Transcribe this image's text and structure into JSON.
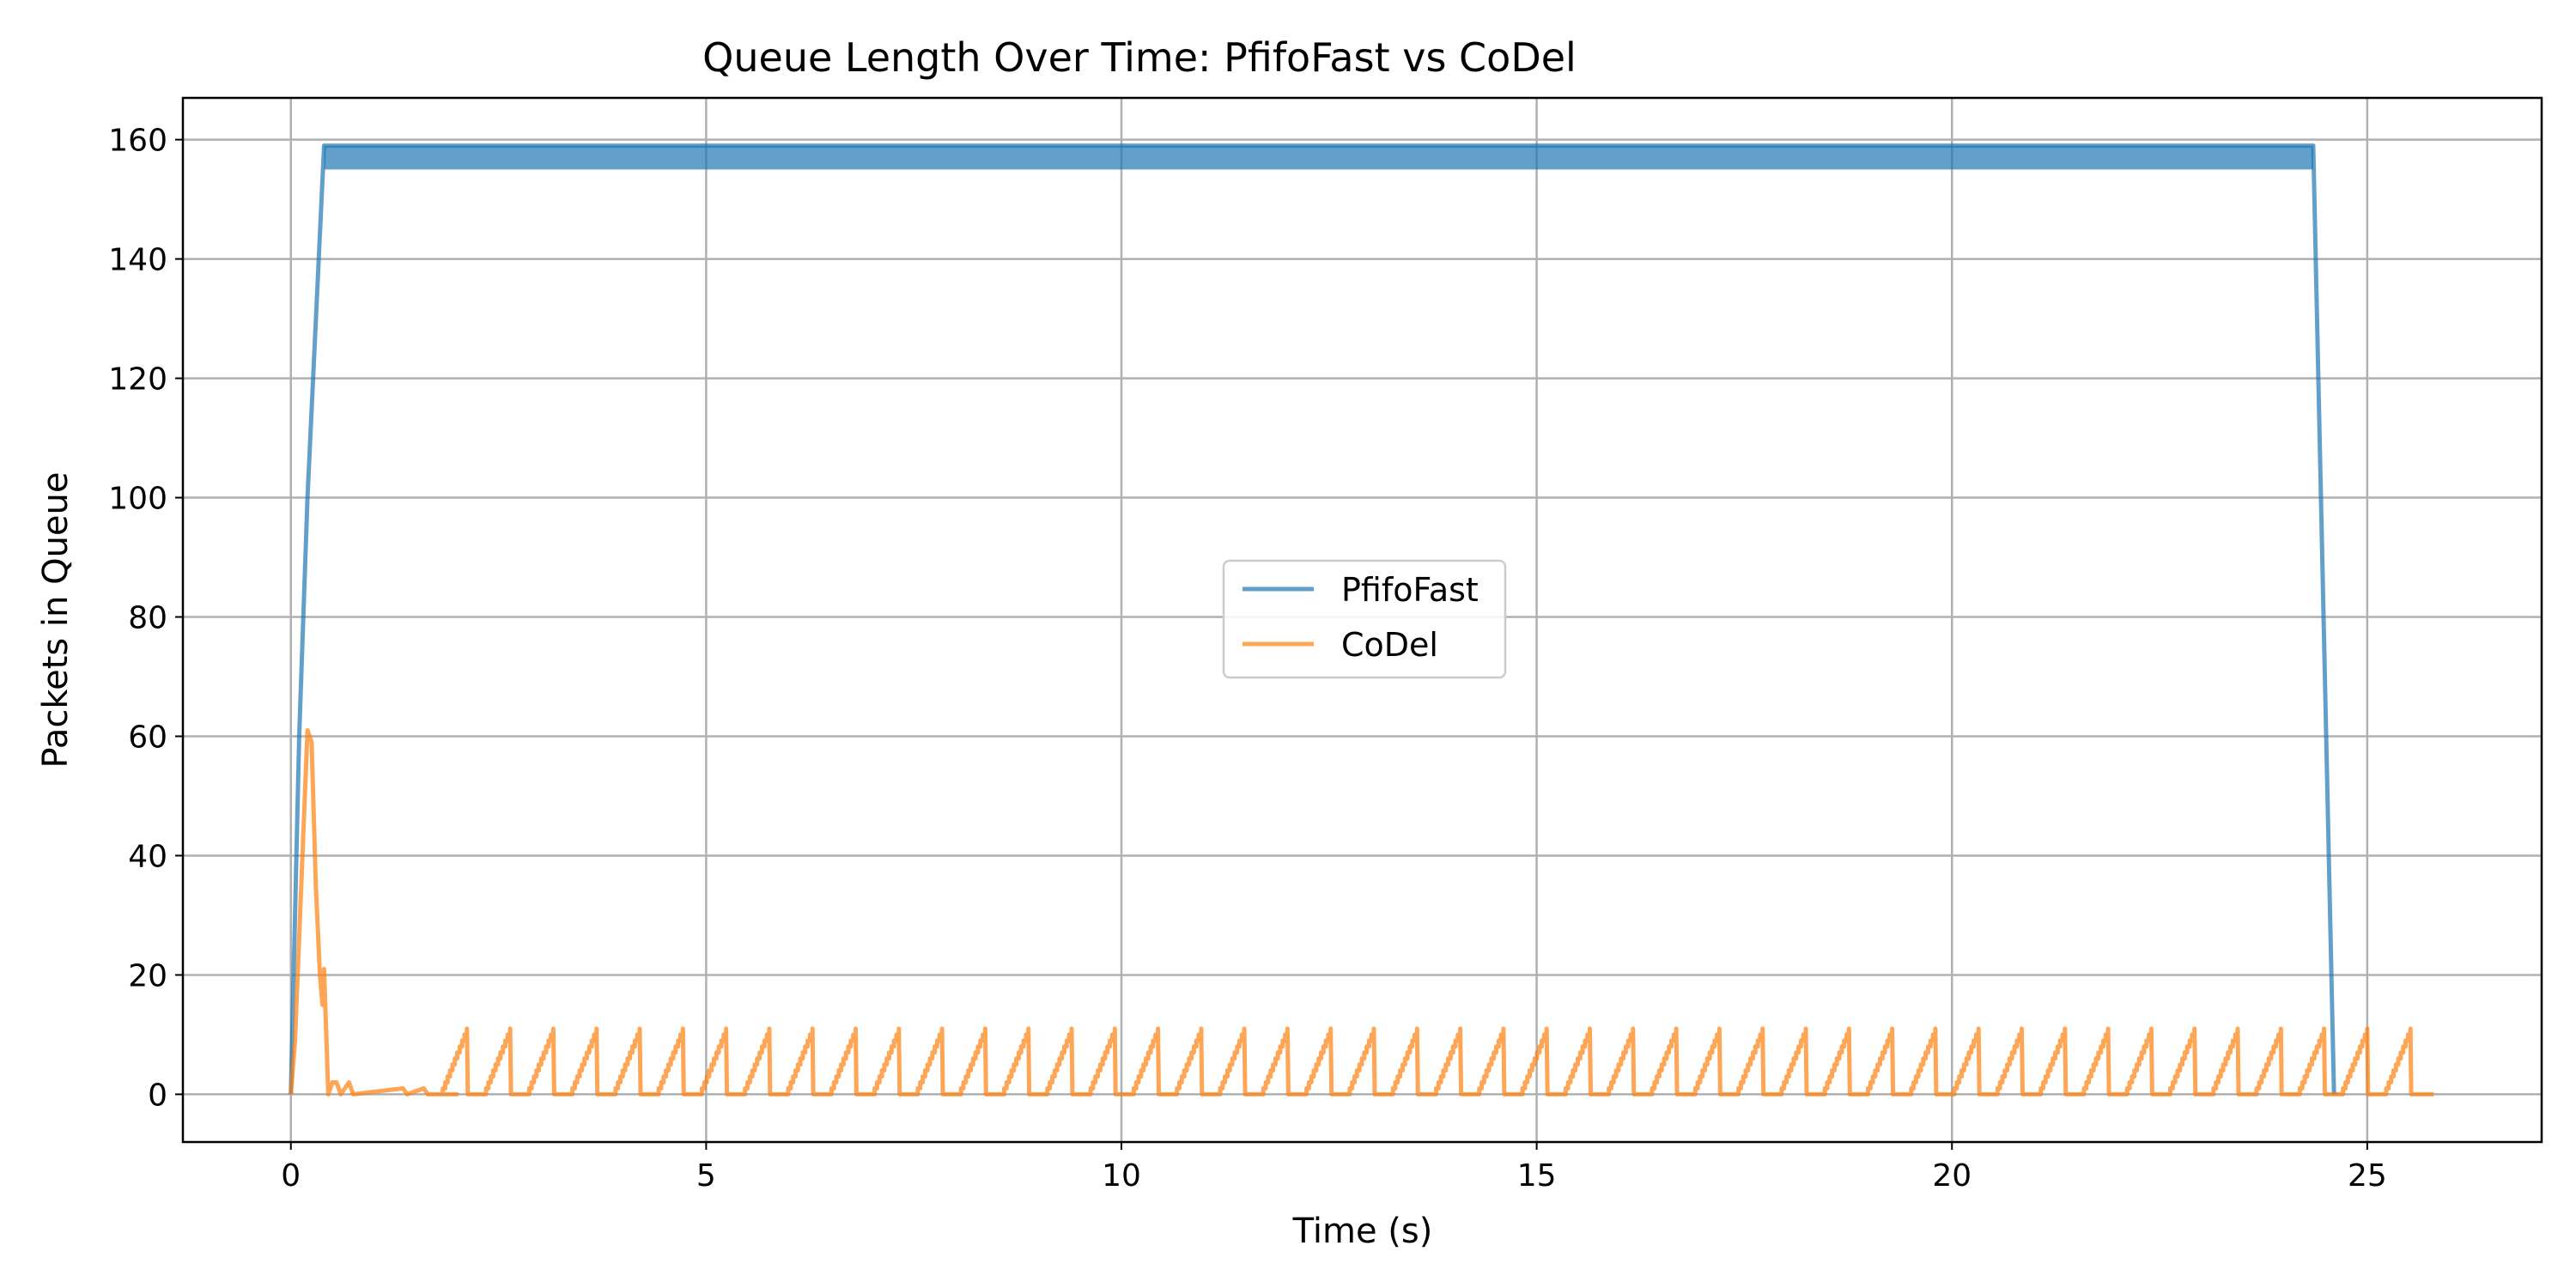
{
  "chart_data": {
    "type": "line",
    "title": "Queue Length Over Time: PfifoFast vs CoDel",
    "xlabel": "Time (s)",
    "ylabel": "Packets in Queue",
    "xlim": [
      -1.3,
      27.1
    ],
    "ylim": [
      -8,
      167
    ],
    "xticks": [
      0,
      5,
      10,
      15,
      20,
      25
    ],
    "yticks": [
      0,
      20,
      40,
      60,
      80,
      100,
      120,
      140,
      160
    ],
    "grid": true,
    "legend_position": "center",
    "colors": {
      "PfifoFast": "#1f77b4",
      "CoDel": "#ff7f0e"
    },
    "series": [
      {
        "name": "PfifoFast",
        "band": {
          "x_start": 0.4,
          "x_end": 24.35,
          "y_low": 155,
          "y_high": 159
        },
        "x": [
          0,
          0.1,
          0.2,
          0.4,
          24.35,
          24.6
        ],
        "y": [
          0,
          60,
          100,
          159,
          159,
          0
        ]
      },
      {
        "name": "CoDel",
        "x": [
          0,
          0.05,
          0.2,
          0.25,
          0.3,
          0.35,
          0.38,
          0.4,
          0.45,
          0.5,
          0.55,
          0.6,
          0.7,
          0.75,
          1.35,
          1.4,
          1.6,
          1.65,
          2.0
        ],
        "y": [
          0,
          9,
          61,
          59,
          35,
          20,
          15,
          21,
          0,
          2,
          2,
          0,
          2,
          0,
          1,
          0,
          1,
          0,
          0
        ],
        "periodic": {
          "start": 1.8,
          "end": 25.8,
          "period": 0.52,
          "ramp": 0.32,
          "min": 0,
          "max": 11,
          "end_value": 0
        }
      }
    ]
  }
}
